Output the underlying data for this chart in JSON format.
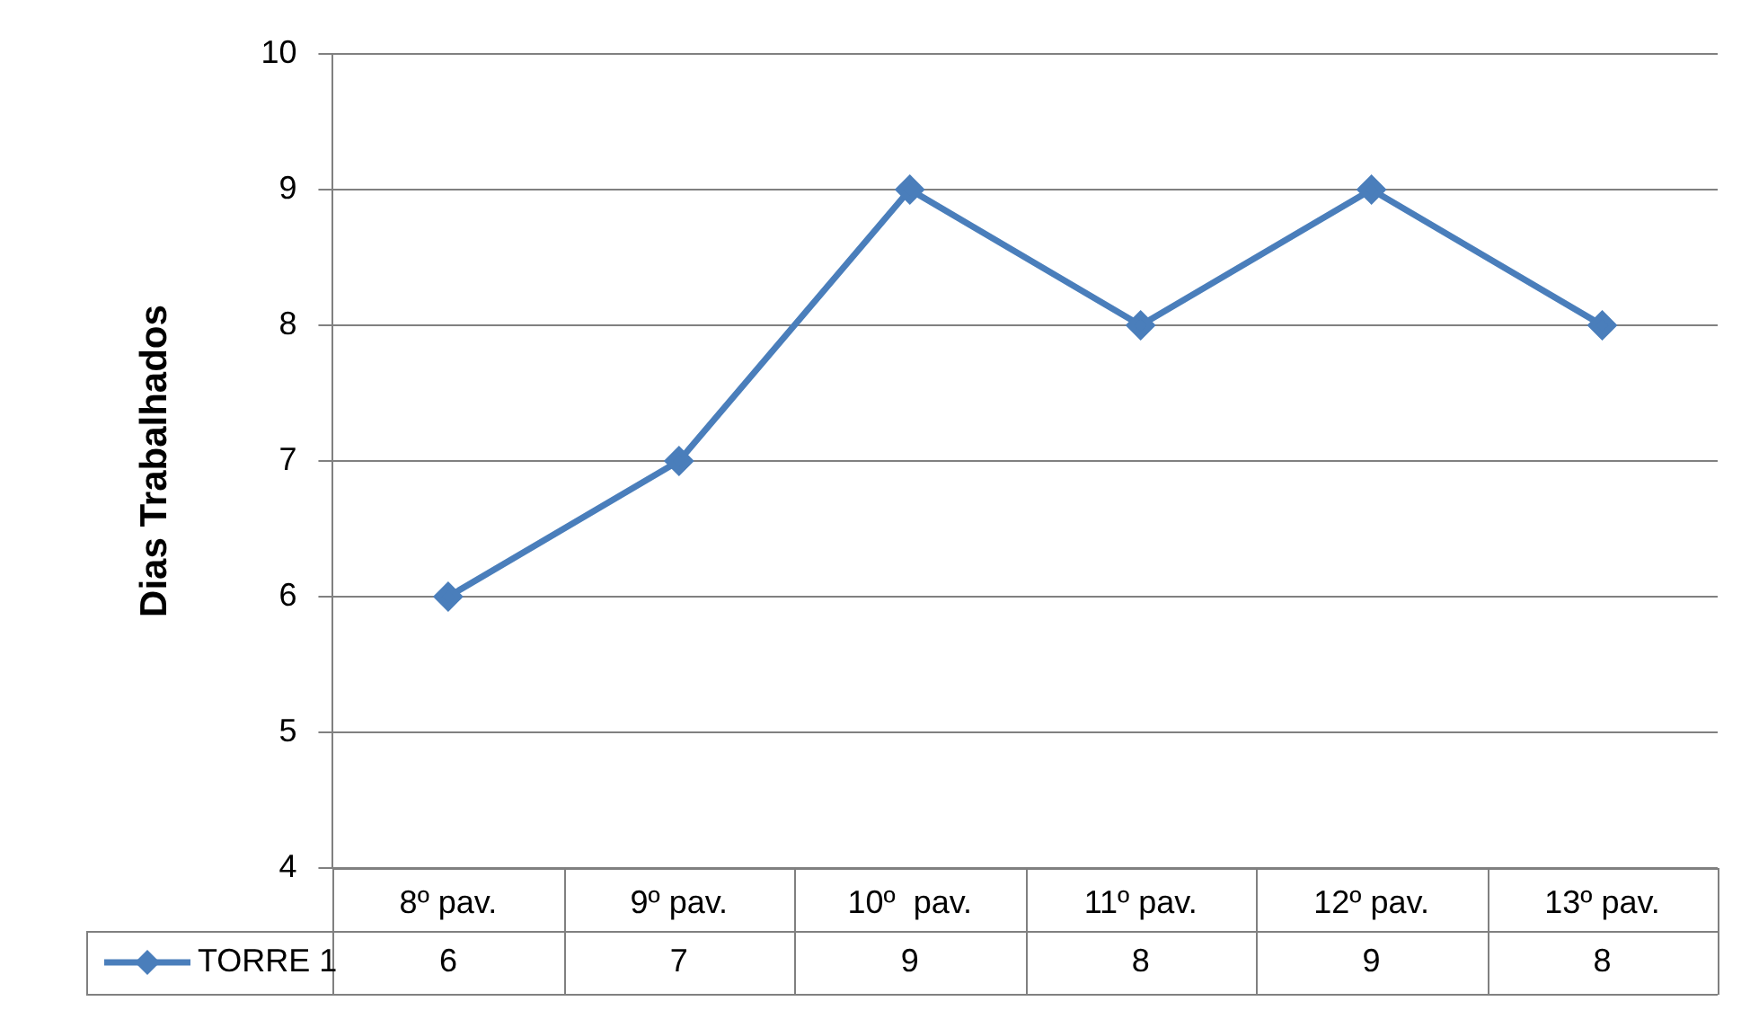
{
  "chart_data": {
    "type": "line",
    "ylabel": "Dias Trabalhados",
    "categories": [
      "8º pav.",
      "9º pav.",
      "10º  pav.",
      "11º pav.",
      "12º pav.",
      "13º pav."
    ],
    "series": [
      {
        "name": "TORRE 1",
        "color": "#4a7ebb",
        "values": [
          6,
          7,
          9,
          8,
          9,
          8
        ]
      }
    ],
    "ylim": [
      4,
      10
    ],
    "yticks": [
      4,
      5,
      6,
      7,
      8,
      9,
      10
    ],
    "grid": "y",
    "legend": "bottom left",
    "marker": "diamond",
    "line_style": "solid",
    "data_labels": true
  }
}
